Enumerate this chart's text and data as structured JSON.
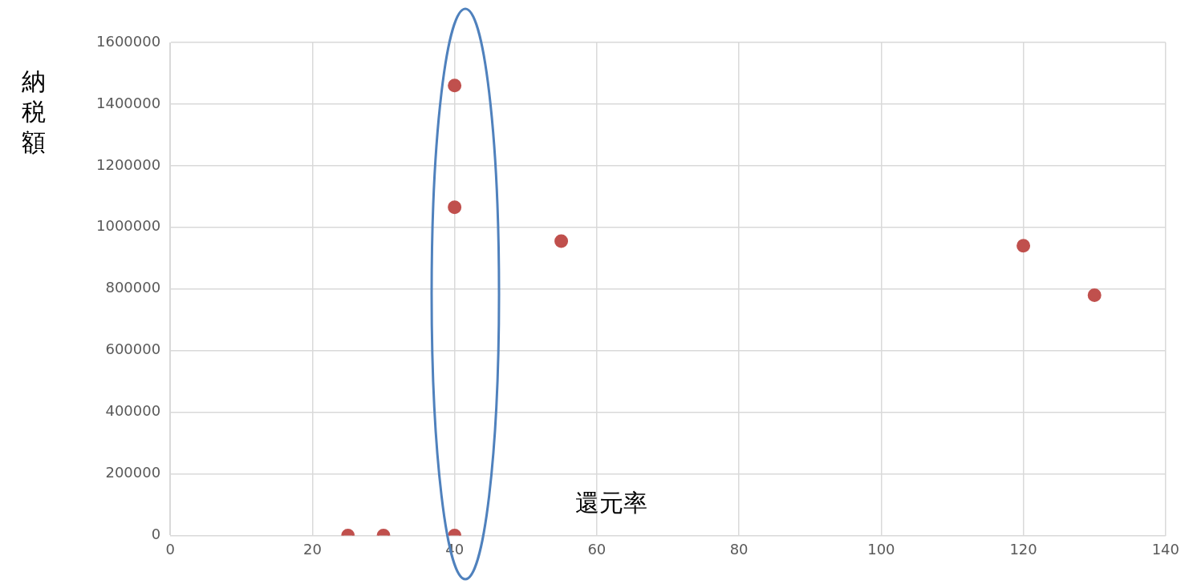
{
  "chart_data": {
    "type": "scatter",
    "xlabel": "還元率",
    "ylabel": "納税額",
    "x": [
      25,
      30,
      40,
      40,
      40,
      55,
      120,
      130
    ],
    "values": [
      0,
      0,
      0,
      1460000,
      1065000,
      955000,
      940000,
      780000
    ],
    "color": "#c0504d",
    "marker": "circle",
    "grid": true,
    "legend": false,
    "xlim": [
      0,
      140
    ],
    "xticks": [
      0,
      20,
      40,
      60,
      80,
      100,
      120,
      140
    ],
    "ylim": [
      0,
      1600000
    ],
    "yticks": [
      0,
      200000,
      400000,
      600000,
      800000,
      1000000,
      1200000,
      1400000,
      1600000
    ]
  }
}
